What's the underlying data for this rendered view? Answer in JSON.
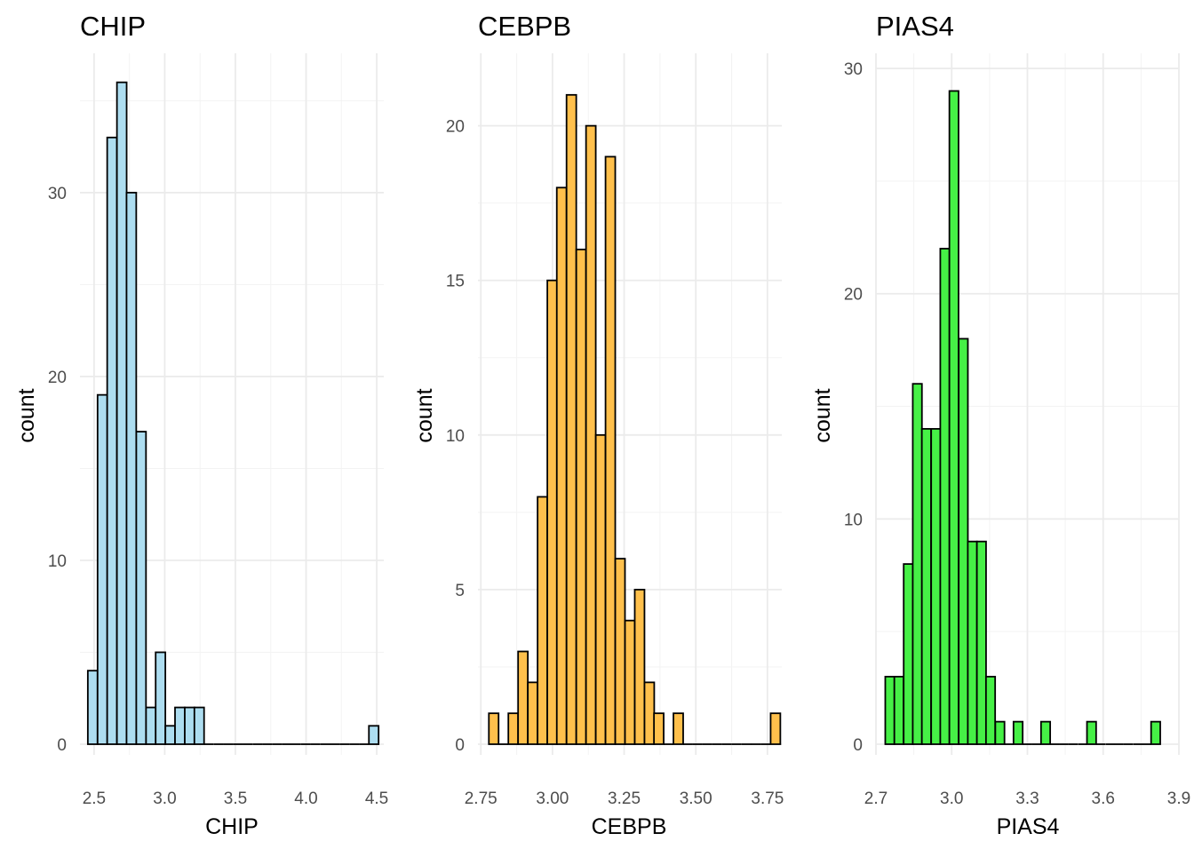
{
  "chart_data": [
    {
      "type": "bar",
      "title": "CHIP",
      "xlabel": "CHIP",
      "ylabel": "count",
      "fill": "#ADDDF0",
      "stroke": "#000000",
      "grid": true,
      "legend": "none",
      "xlim": [
        2.4,
        4.55
      ],
      "ylim": [
        0,
        37
      ],
      "x_ticks": [
        2.5,
        3.0,
        3.5,
        4.0,
        4.5
      ],
      "x_tick_labels": [
        "2.5",
        "3.0",
        "3.5",
        "4.0",
        "4.5"
      ],
      "y_ticks": [
        0,
        10,
        20,
        30
      ],
      "y_tick_labels": [
        "0",
        "10",
        "20",
        "30"
      ],
      "bin_width": 0.0686,
      "bin_centers": [
        2.49,
        2.559,
        2.627,
        2.696,
        2.764,
        2.833,
        2.902,
        2.97,
        3.039,
        3.107,
        3.176,
        3.244,
        3.313,
        3.382,
        3.45,
        3.519,
        3.587,
        3.656,
        3.724,
        3.793,
        3.862,
        3.93,
        3.999,
        4.067,
        4.136,
        4.204,
        4.273,
        4.342,
        4.41,
        4.479
      ],
      "values": [
        4,
        19,
        33,
        36,
        30,
        17,
        2,
        5,
        1,
        2,
        2,
        2,
        0,
        0,
        0,
        0,
        0,
        0,
        0,
        0,
        0,
        0,
        0,
        0,
        0,
        0,
        0,
        0,
        0,
        1
      ]
    },
    {
      "type": "bar",
      "title": "CEBPB",
      "xlabel": "CEBPB",
      "ylabel": "count",
      "fill": "#FFC04C",
      "stroke": "#000000",
      "grid": true,
      "legend": "none",
      "xlim": [
        2.74,
        3.8
      ],
      "ylim": [
        0,
        22
      ],
      "x_ticks": [
        2.75,
        3.0,
        3.25,
        3.5,
        3.75
      ],
      "x_tick_labels": [
        "2.75",
        "3.00",
        "3.25",
        "3.50",
        "3.75"
      ],
      "y_ticks": [
        0,
        5,
        10,
        15,
        20
      ],
      "y_tick_labels": [
        "0",
        "5",
        "10",
        "15",
        "20"
      ],
      "bin_width": 0.0339,
      "bin_centers": [
        2.795,
        2.829,
        2.863,
        2.897,
        2.931,
        2.965,
        2.999,
        3.032,
        3.066,
        3.1,
        3.134,
        3.168,
        3.202,
        3.236,
        3.27,
        3.304,
        3.338,
        3.371,
        3.405,
        3.439,
        3.473,
        3.507,
        3.541,
        3.575,
        3.609,
        3.643,
        3.677,
        3.71,
        3.744,
        3.778
      ],
      "values": [
        1,
        0,
        1,
        3,
        2,
        8,
        15,
        18,
        21,
        16,
        20,
        10,
        19,
        6,
        4,
        5,
        2,
        1,
        0,
        1,
        0,
        0,
        0,
        0,
        0,
        0,
        0,
        0,
        0,
        1
      ]
    },
    {
      "type": "bar",
      "title": "PIAS4",
      "xlabel": "PIAS4",
      "ylabel": "count",
      "fill": "#46F046",
      "stroke": "#000000",
      "grid": true,
      "legend": "none",
      "xlim": [
        2.7,
        3.9
      ],
      "ylim": [
        0,
        30.2
      ],
      "x_ticks": [
        2.7,
        3.0,
        3.3,
        3.6,
        3.9
      ],
      "x_tick_labels": [
        "2.7",
        "3.0",
        "3.3",
        "3.6",
        "3.9"
      ],
      "y_ticks": [
        0,
        10,
        20,
        30
      ],
      "y_tick_labels": [
        "0",
        "10",
        "20",
        "30"
      ],
      "bin_width": 0.0363,
      "bin_centers": [
        2.755,
        2.791,
        2.828,
        2.864,
        2.9,
        2.937,
        2.973,
        3.009,
        3.046,
        3.082,
        3.118,
        3.154,
        3.191,
        3.227,
        3.263,
        3.3,
        3.336,
        3.372,
        3.409,
        3.445,
        3.481,
        3.518,
        3.554,
        3.59,
        3.627,
        3.663,
        3.699,
        3.736,
        3.772,
        3.808
      ],
      "values": [
        3,
        3,
        8,
        16,
        14,
        14,
        22,
        29,
        18,
        9,
        9,
        3,
        1,
        0,
        1,
        0,
        0,
        1,
        0,
        0,
        0,
        0,
        1,
        0,
        0,
        0,
        0,
        0,
        0,
        1
      ]
    }
  ]
}
